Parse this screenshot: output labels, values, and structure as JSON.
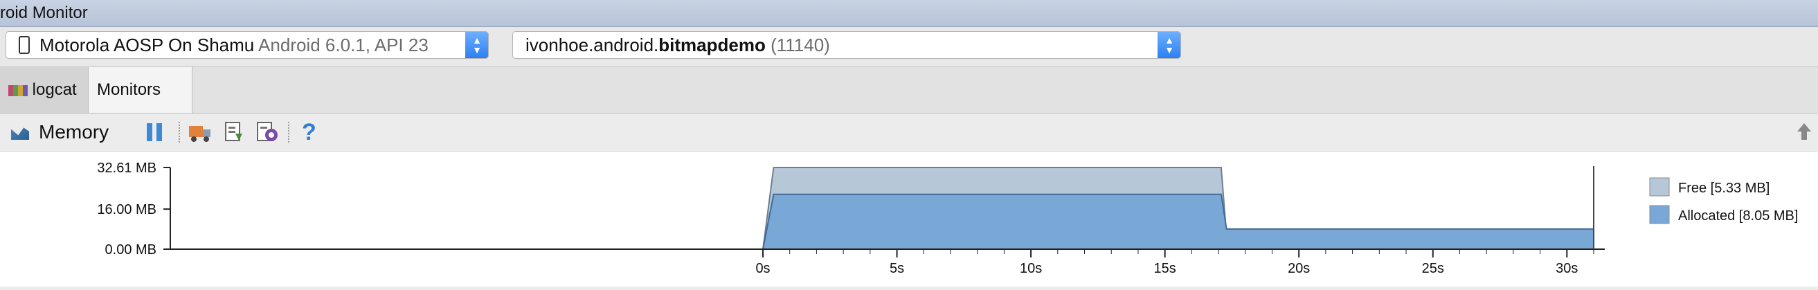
{
  "window": {
    "title": "roid Monitor"
  },
  "device_selector": {
    "device": "Motorola AOSP On Shamu",
    "details": "Android 6.0.1, API 23"
  },
  "process_selector": {
    "package_prefix": "ivonhoe.android.",
    "package_bold": "bitmapdemo",
    "pid": "(11140)"
  },
  "tabs": [
    {
      "label": "logcat",
      "icon": "logcat-icon"
    },
    {
      "label": "Monitors",
      "icon": "pin-icon"
    }
  ],
  "memory_panel": {
    "title": "Memory",
    "tools": [
      "pause-icon",
      "gc-truck-icon",
      "dump-heap-icon",
      "allocation-tracker-icon",
      "help-icon"
    ],
    "help_glyph": "?"
  },
  "colors": {
    "free": "#b6c7d8",
    "allocated": "#7aa8d6",
    "free_edge": "#6d7f92",
    "allocated_edge": "#426b96"
  },
  "chart_data": {
    "type": "area",
    "title": "",
    "xlabel": "",
    "ylabel": "",
    "ylim": [
      0,
      32.61
    ],
    "xlim": [
      0,
      31
    ],
    "y_ticks": [
      {
        "value": 32.61,
        "label": "32.61 MB"
      },
      {
        "value": 16.0,
        "label": "16.00 MB"
      },
      {
        "value": 0.0,
        "label": "0.00 MB"
      }
    ],
    "x_ticks": [
      {
        "value": 0,
        "label": "0s"
      },
      {
        "value": 5,
        "label": "5s"
      },
      {
        "value": 10,
        "label": "10s"
      },
      {
        "value": 15,
        "label": "15s"
      },
      {
        "value": 20,
        "label": "20s"
      },
      {
        "value": 25,
        "label": "25s"
      },
      {
        "value": 30,
        "label": "30s"
      }
    ],
    "x": [
      0,
      0.4,
      17.1,
      17.3,
      31
    ],
    "series": [
      {
        "name": "Allocated",
        "legend_label": "Allocated [8.05 MB]",
        "values": [
          0,
          21.9,
          21.9,
          8.05,
          8.05
        ]
      },
      {
        "name": "Free",
        "legend_label": "Free [5.33 MB]",
        "values": [
          0,
          32.61,
          32.61,
          5.33,
          5.33
        ]
      }
    ],
    "legend_position": "right",
    "grid": false
  }
}
